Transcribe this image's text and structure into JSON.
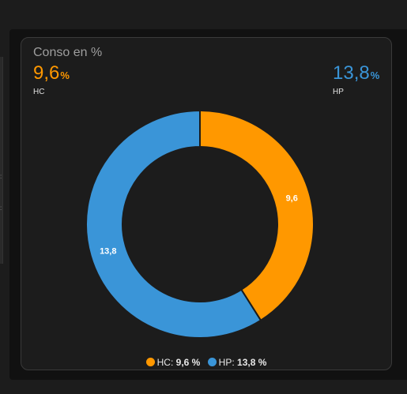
{
  "card": {
    "title": "Conso en %",
    "stats": [
      {
        "value": "9,6",
        "unit": "%",
        "label": "HC",
        "color": "#ff9800"
      },
      {
        "value": "13,8",
        "unit": "%",
        "label": "HP",
        "color": "#3a95d8"
      }
    ]
  },
  "chart_data": {
    "type": "pie",
    "subtype": "donut",
    "categories": [
      "HC",
      "HP"
    ],
    "values": [
      9.6,
      13.8
    ],
    "data_labels": [
      "9,6",
      "13,8"
    ],
    "colors": [
      "#ff9800",
      "#3a95d8"
    ],
    "legend_position": "bottom",
    "legend": [
      {
        "name": "HC",
        "value_text": "9,6 %"
      },
      {
        "name": "HP",
        "value_text": "13,8 %"
      }
    ]
  }
}
